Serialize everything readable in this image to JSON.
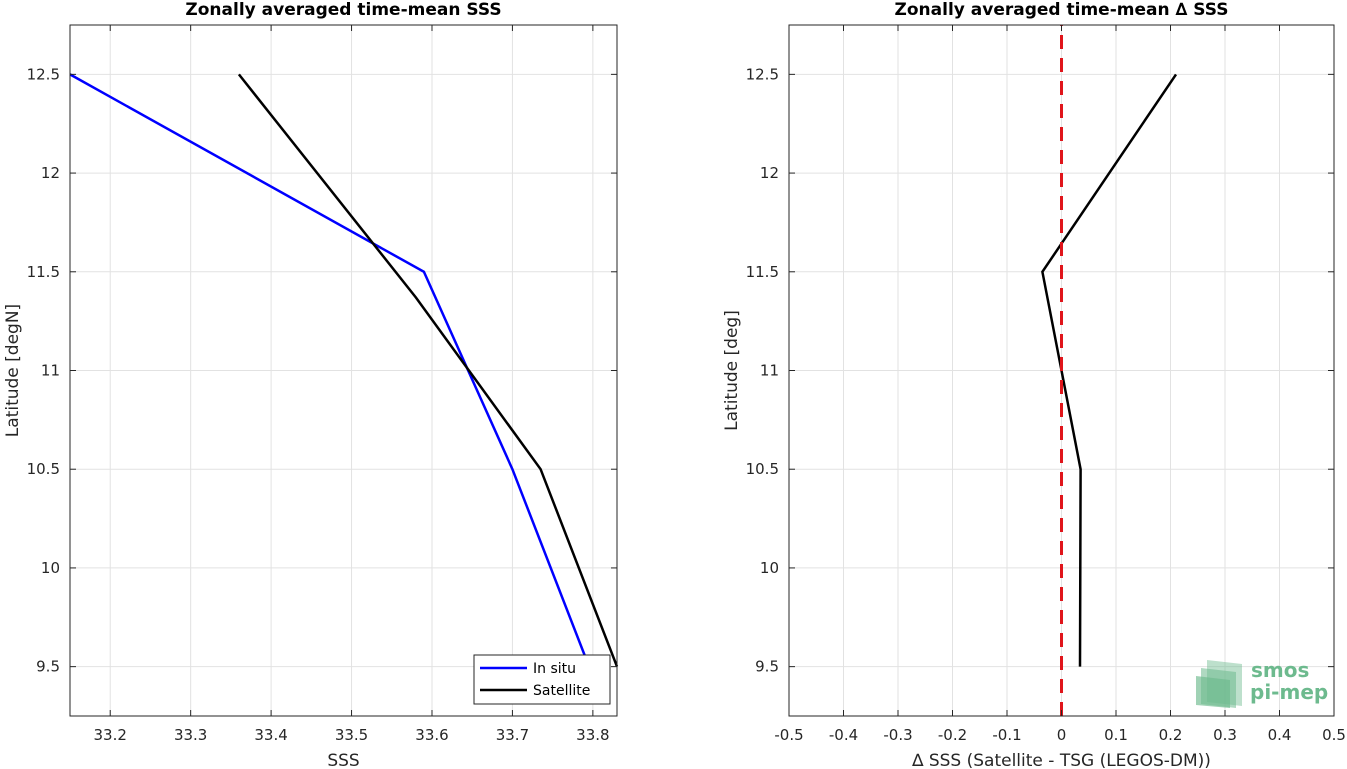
{
  "chart_data": [
    {
      "type": "line",
      "title": "Zonally averaged time-mean SSS",
      "xlabel": "SSS",
      "ylabel": "Latitude [degN]",
      "xlim": [
        33.15,
        33.83
      ],
      "ylim": [
        9.25,
        12.75
      ],
      "xticks": [
        33.2,
        33.3,
        33.4,
        33.5,
        33.6,
        33.7,
        33.8
      ],
      "xtick_labels": [
        "33.2",
        "33.3",
        "33.4",
        "33.5",
        "33.6",
        "33.7",
        "33.8"
      ],
      "yticks": [
        9.5,
        10,
        10.5,
        11,
        11.5,
        12,
        12.5
      ],
      "ytick_labels": [
        "9.5",
        "10",
        "10.5",
        "11",
        "11.5",
        "12",
        "12.5"
      ],
      "grid": true,
      "legend_position": "bottom-right",
      "series": [
        {
          "name": "In situ",
          "color": "#0000ff",
          "dashed": false,
          "points": [
            [
              33.15,
              12.5
            ],
            [
              33.59,
              11.5
            ],
            [
              33.7,
              10.5
            ],
            [
              33.8,
              9.45
            ]
          ]
        },
        {
          "name": "Satellite",
          "color": "#000000",
          "dashed": false,
          "points": [
            [
              33.36,
              12.5
            ],
            [
              33.58,
              11.37
            ],
            [
              33.735,
              10.5
            ],
            [
              33.83,
              9.5
            ]
          ]
        }
      ]
    },
    {
      "type": "line",
      "title": "Zonally averaged time-mean ∆ SSS",
      "xlabel": "∆ SSS (Satellite - TSG (LEGOS-DM))",
      "ylabel": "Latitude [deg]",
      "xlim": [
        -0.5,
        0.5
      ],
      "ylim": [
        9.25,
        12.75
      ],
      "xticks": [
        -0.5,
        -0.4,
        -0.3,
        -0.2,
        -0.1,
        0,
        0.1,
        0.2,
        0.3,
        0.4,
        0.5
      ],
      "xtick_labels": [
        "-0.5",
        "-0.4",
        "-0.3",
        "-0.2",
        "-0.1",
        "0",
        "0.1",
        "0.2",
        "0.3",
        "0.4",
        "0.5"
      ],
      "yticks": [
        9.5,
        10,
        10.5,
        11,
        11.5,
        12,
        12.5
      ],
      "ytick_labels": [
        "9.5",
        "10",
        "10.5",
        "11",
        "11.5",
        "12",
        "12.5"
      ],
      "grid": true,
      "series": [
        {
          "color": "#000000",
          "dashed": false,
          "points": [
            [
              0.21,
              12.5
            ],
            [
              -0.035,
              11.5
            ],
            [
              0.035,
              10.5
            ],
            [
              0.034,
              9.5
            ]
          ]
        },
        {
          "color": "#e0151b",
          "dashed": true,
          "points": [
            [
              0,
              9.25
            ],
            [
              0,
              12.75
            ]
          ]
        }
      ]
    }
  ],
  "logo": {
    "line1": "smos",
    "line2": "pi-mep",
    "color": "#6dba8e"
  }
}
